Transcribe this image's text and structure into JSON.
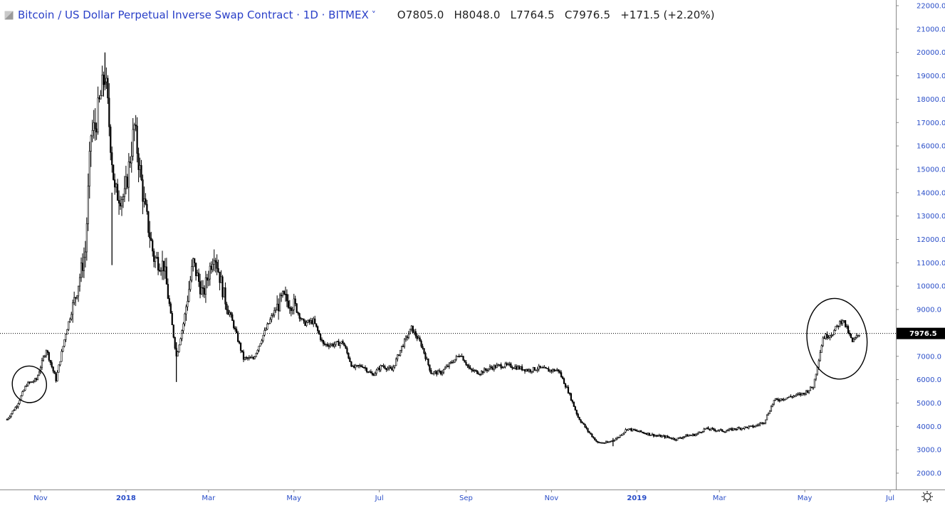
{
  "header": {
    "title": "Bitcoin / US Dollar Perpetual Inverse Swap Contract · 1D · BITMEX",
    "open": "O7805.0",
    "high": "H8048.0",
    "low": "L7764.5",
    "close": "C7976.5",
    "change": "+171.5 (+2.20%)"
  },
  "colors": {
    "candle": "#000000",
    "axis_text": "#2a4ec8",
    "header_text": "#2a40c8",
    "price_label_bg": "#000000"
  },
  "icons": {
    "symbol": "square-icon",
    "settings": "gear-icon"
  },
  "chart_data": {
    "type": "line",
    "title": "Bitcoin / US Dollar Perpetual Inverse Swap Contract · 1D · BITMEX",
    "xlabel": "",
    "ylabel": "",
    "x_ticks": [
      "Nov",
      "2018",
      "Mar",
      "May",
      "Jul",
      "Sep",
      "Nov",
      "2019",
      "Mar",
      "May",
      "Jul"
    ],
    "x_tick_dates": [
      "2017-11-01",
      "2018-01-01",
      "2018-03-01",
      "2018-05-01",
      "2018-07-01",
      "2018-09-01",
      "2018-11-01",
      "2019-01-01",
      "2019-03-01",
      "2019-05-01",
      "2019-07-01"
    ],
    "y_ticks": [
      "22000.0",
      "21000.0",
      "20000.0",
      "19000.0",
      "18000.0",
      "17000.0",
      "16000.0",
      "15000.0",
      "14000.0",
      "13000.0",
      "12000.0",
      "11000.0",
      "10000.0",
      "9000.0",
      "8000.0",
      "7000.0",
      "6000.0",
      "5000.0",
      "4000.0",
      "3000.0",
      "2000.0"
    ],
    "ylim": [
      1400,
      22000
    ],
    "xlim": [
      "2017-10-08",
      "2019-07-11"
    ],
    "last_price": "7976.5",
    "grid": false,
    "series": [
      {
        "x": [
          "2017-10-08",
          "2017-10-15",
          "2017-10-22",
          "2017-10-29",
          "2017-11-05",
          "2017-11-12",
          "2017-11-19",
          "2017-11-26",
          "2017-12-03",
          "2017-12-07",
          "2017-12-10",
          "2017-12-17",
          "2017-12-24",
          "2017-12-31",
          "2018-01-07",
          "2018-01-14",
          "2018-01-21",
          "2018-01-28",
          "2018-02-06",
          "2018-02-11",
          "2018-02-18",
          "2018-02-25",
          "2018-03-05",
          "2018-03-12",
          "2018-03-19",
          "2018-03-26",
          "2018-04-02",
          "2018-04-09",
          "2018-04-16",
          "2018-04-23",
          "2018-05-01",
          "2018-05-08",
          "2018-05-15",
          "2018-05-22",
          "2018-05-29",
          "2018-06-05",
          "2018-06-12",
          "2018-06-19",
          "2018-06-26",
          "2018-07-03",
          "2018-07-10",
          "2018-07-17",
          "2018-07-24",
          "2018-07-31",
          "2018-08-07",
          "2018-08-14",
          "2018-08-21",
          "2018-08-28",
          "2018-09-04",
          "2018-09-11",
          "2018-09-18",
          "2018-09-25",
          "2018-10-02",
          "2018-10-09",
          "2018-10-16",
          "2018-10-23",
          "2018-10-30",
          "2018-11-06",
          "2018-11-13",
          "2018-11-20",
          "2018-11-27",
          "2018-12-04",
          "2018-12-11",
          "2018-12-18",
          "2018-12-25",
          "2019-01-01",
          "2019-01-08",
          "2019-01-15",
          "2019-01-22",
          "2019-01-29",
          "2019-02-05",
          "2019-02-12",
          "2019-02-19",
          "2019-02-26",
          "2019-03-05",
          "2019-03-12",
          "2019-03-19",
          "2019-03-26",
          "2019-04-02",
          "2019-04-09",
          "2019-04-16",
          "2019-04-23",
          "2019-04-30",
          "2019-05-07",
          "2019-05-14",
          "2019-05-21",
          "2019-05-28",
          "2019-06-04",
          "2019-06-09"
        ],
        "y": [
          4300,
          4900,
          5800,
          6000,
          7300,
          6000,
          8000,
          9600,
          11500,
          16500,
          16800,
          19100,
          14000,
          13800,
          16800,
          13500,
          11200,
          10900,
          7000,
          8400,
          11000,
          9600,
          11500,
          9600,
          8300,
          6900,
          6900,
          7900,
          8800,
          9500,
          9200,
          8400,
          8500,
          7500,
          7500,
          7600,
          6500,
          6600,
          6200,
          6600,
          6400,
          7400,
          8200,
          7500,
          6300,
          6300,
          6700,
          7100,
          6400,
          6300,
          6500,
          6600,
          6600,
          6500,
          6400,
          6500,
          6400,
          6400,
          5500,
          4400,
          3800,
          3300,
          3300,
          3500,
          3900,
          3800,
          3700,
          3600,
          3550,
          3450,
          3600,
          3650,
          3900,
          3850,
          3800,
          3900,
          3950,
          4000,
          4200,
          5100,
          5200,
          5300,
          5400,
          5700,
          7800,
          8000,
          8600,
          7600,
          7976.5
        ],
        "high_approx": 20000,
        "low_approx": 3150
      }
    ],
    "annotations": [
      {
        "type": "ellipse",
        "around": "Oct–Nov 2017",
        "price_range": [
          5200,
          6400
        ]
      },
      {
        "type": "ellipse",
        "around": "May–Jun 2019",
        "price_range": [
          6200,
          9300
        ]
      }
    ]
  }
}
